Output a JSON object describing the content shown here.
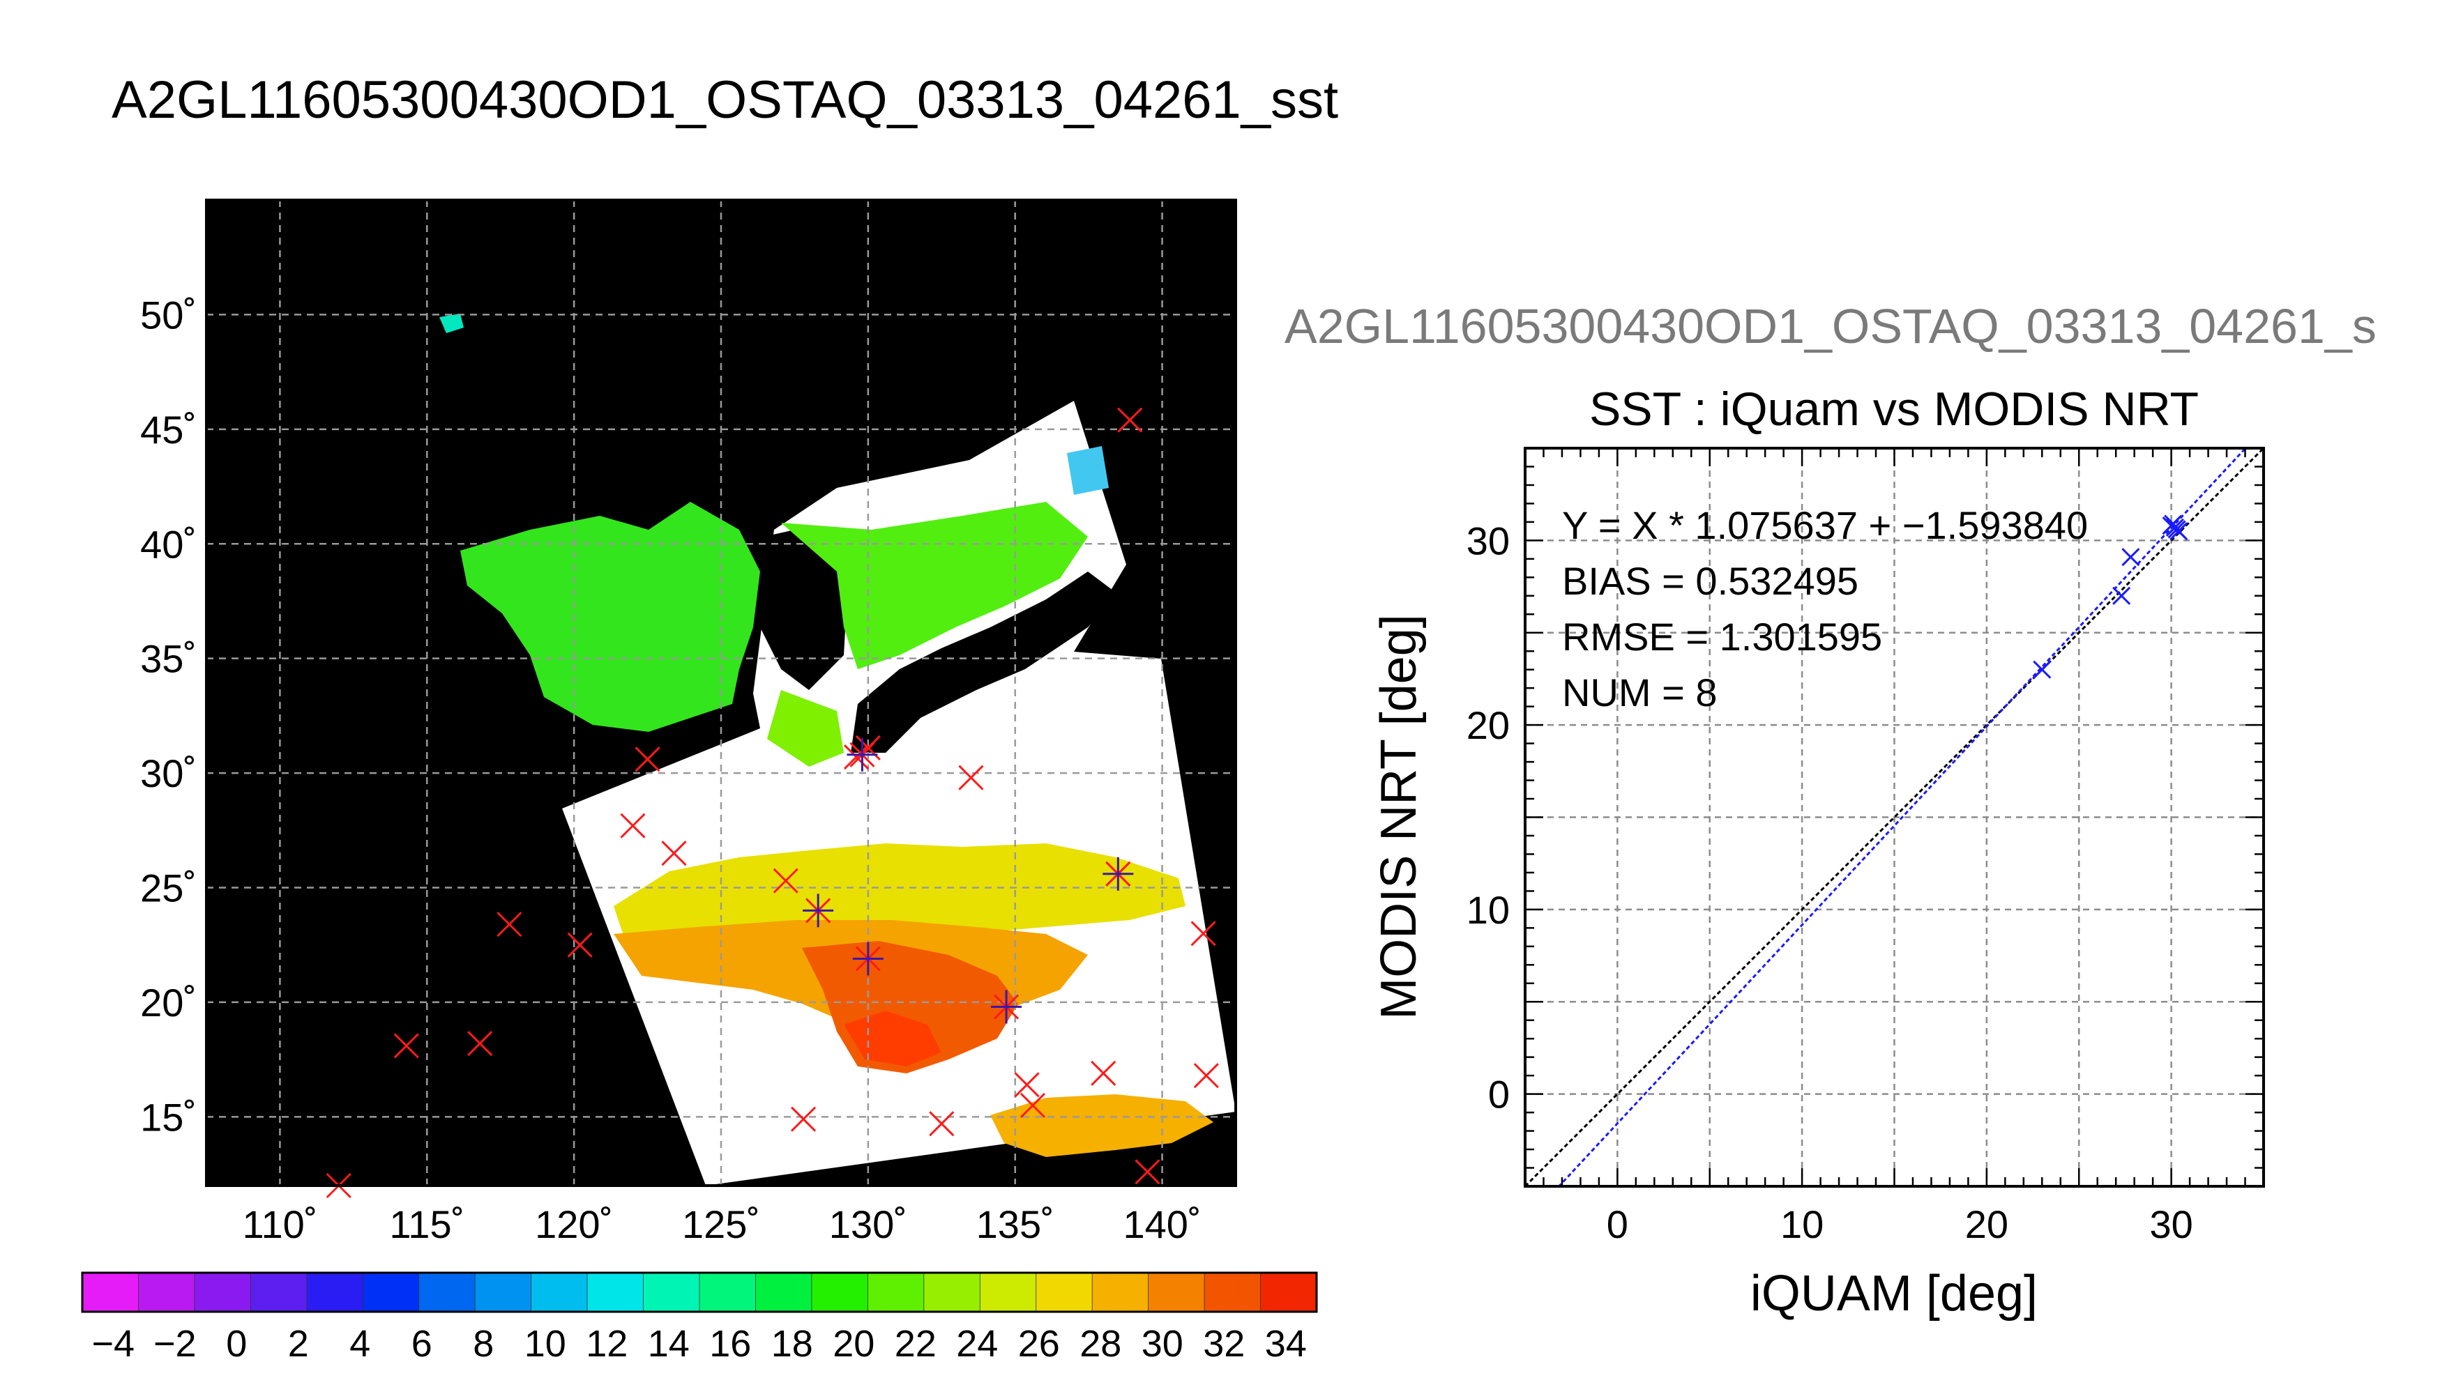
{
  "page": {
    "title": "A2GL11605300430OD1_OSTAQ_03313_04261_sst"
  },
  "chart_data": [
    {
      "type": "map",
      "title": "A2GL11605300430OD1_OSTAQ_03313_04261_sst",
      "x_ticks": [
        "110˚",
        "115˚",
        "120˚",
        "125˚",
        "130˚",
        "135˚",
        "140˚"
      ],
      "y_ticks": [
        "15˚",
        "20˚",
        "25˚",
        "30˚",
        "35˚",
        "40˚",
        "45˚",
        "50˚"
      ],
      "x_values": [
        110,
        115,
        120,
        125,
        130,
        135,
        140
      ],
      "y_values": [
        15,
        20,
        25,
        30,
        35,
        40,
        45,
        50
      ],
      "xlim": [
        107.5,
        142.5
      ],
      "ylim": [
        12,
        55
      ],
      "grid": true,
      "background": "#000000",
      "colorbar": {
        "range": [
          -5,
          35
        ],
        "labels": [
          "−4",
          "−2",
          "0",
          "2",
          "4",
          "6",
          "8",
          "10",
          "12",
          "14",
          "16",
          "18",
          "20",
          "22",
          "24",
          "26",
          "28",
          "30",
          "32",
          "34"
        ],
        "label_values": [
          -4,
          -2,
          0,
          2,
          4,
          6,
          8,
          10,
          12,
          14,
          16,
          18,
          20,
          22,
          24,
          26,
          28,
          30,
          32,
          34
        ],
        "colors": [
          "#e51cf7",
          "#b81af1",
          "#8a1af0",
          "#5c1ff0",
          "#2a1df3",
          "#0030f5",
          "#0067f0",
          "#0092f0",
          "#00bdf0",
          "#00e5e8",
          "#00f5b5",
          "#00f57a",
          "#00f040",
          "#23f000",
          "#5ef000",
          "#98ee00",
          "#cceb00",
          "#f1d800",
          "#f5b000",
          "#f48100",
          "#f25400",
          "#f22600"
        ]
      },
      "markers_iquam": [
        {
          "lon": 112,
          "lat": 12
        },
        {
          "lon": 114.3,
          "lat": 18.1
        },
        {
          "lon": 116.8,
          "lat": 18.2
        },
        {
          "lon": 117.8,
          "lat": 23.4
        },
        {
          "lon": 120.2,
          "lat": 22.5
        },
        {
          "lon": 122.0,
          "lat": 27.7
        },
        {
          "lon": 122.5,
          "lat": 30.6
        },
        {
          "lon": 123.4,
          "lat": 26.5
        },
        {
          "lon": 127.2,
          "lat": 25.3
        },
        {
          "lon": 127.8,
          "lat": 14.9
        },
        {
          "lon": 129.6,
          "lat": 30.7
        },
        {
          "lon": 130.0,
          "lat": 31.1
        },
        {
          "lon": 132.5,
          "lat": 14.7
        },
        {
          "lon": 133.5,
          "lat": 29.8
        },
        {
          "lon": 135.4,
          "lat": 16.4
        },
        {
          "lon": 135.6,
          "lat": 15.5
        },
        {
          "lon": 138.0,
          "lat": 16.9
        },
        {
          "lon": 138.5,
          "lat": 25.6
        },
        {
          "lon": 138.9,
          "lat": 45.4
        },
        {
          "lon": 139.5,
          "lat": 12.6
        },
        {
          "lon": 141.4,
          "lat": 23.0
        },
        {
          "lon": 141.5,
          "lat": 16.8
        }
      ],
      "markers_matched": [
        {
          "lon": 128.3,
          "lat": 24.0
        },
        {
          "lon": 130.0,
          "lat": 21.9
        },
        {
          "lon": 134.7,
          "lat": 19.8
        },
        {
          "lon": 129.8,
          "lat": 30.8
        },
        {
          "lon": 138.5,
          "lat": 25.6
        }
      ]
    },
    {
      "type": "scatter",
      "header": "A2GL11605300430OD1_OSTAQ_03313_04261_s",
      "title": "SST : iQuam vs MODIS NRT",
      "xlabel": "iQUAM [deg]",
      "ylabel": "MODIS NRT [deg]",
      "xlim": [
        -5,
        35
      ],
      "ylim": [
        -5,
        35
      ],
      "x_ticks": [
        0,
        10,
        20,
        30
      ],
      "y_ticks": [
        0,
        10,
        20,
        30
      ],
      "grid": true,
      "annotations": [
        "Y = X * 1.075637 + −1.593840",
        "BIAS = 0.532495",
        "RMSE = 1.301595",
        "NUM = 8"
      ],
      "points": [
        {
          "x": 23.0,
          "y": 23.0
        },
        {
          "x": 27.3,
          "y": 27.0
        },
        {
          "x": 27.8,
          "y": 29.1
        },
        {
          "x": 30.0,
          "y": 30.8
        },
        {
          "x": 30.2,
          "y": 30.7
        },
        {
          "x": 30.3,
          "y": 30.6
        },
        {
          "x": 30.1,
          "y": 30.9
        },
        {
          "x": 30.4,
          "y": 30.5
        }
      ],
      "fit": {
        "slope": 1.075637,
        "intercept": -1.59384
      },
      "identity_line": true
    }
  ]
}
